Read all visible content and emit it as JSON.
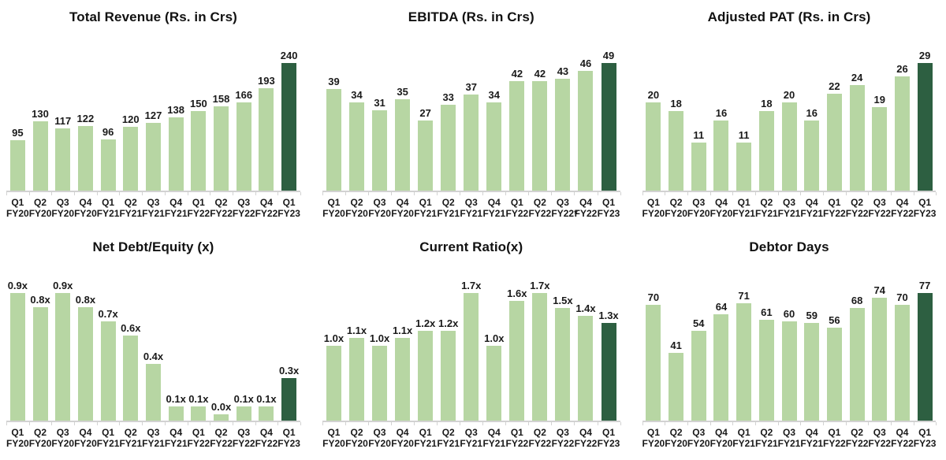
{
  "page": {
    "background": "#ffffff"
  },
  "colors": {
    "bar_light": "#b7d6a3",
    "bar_dark": "#2d5f41",
    "axis": "#d2d2d2",
    "text": "#1a1a1a"
  },
  "chart_data": [
    {
      "type": "bar",
      "title": "Total Revenue (Rs. in Crs)",
      "categories": [
        [
          "Q1",
          "FY20"
        ],
        [
          "Q2",
          "FY20"
        ],
        [
          "Q3",
          "FY20"
        ],
        [
          "Q4",
          "FY20"
        ],
        [
          "Q1",
          "FY21"
        ],
        [
          "Q2",
          "FY21"
        ],
        [
          "Q3",
          "FY21"
        ],
        [
          "Q4",
          "FY21"
        ],
        [
          "Q1",
          "FY22"
        ],
        [
          "Q2",
          "FY22"
        ],
        [
          "Q3",
          "FY22"
        ],
        [
          "Q4",
          "FY22"
        ],
        [
          "Q1",
          "FY23"
        ]
      ],
      "values": [
        95,
        130,
        117,
        122,
        96,
        120,
        127,
        138,
        150,
        158,
        166,
        193,
        240
      ],
      "labels": [
        "95",
        "130",
        "117",
        "122",
        "96",
        "120",
        "127",
        "138",
        "150",
        "158",
        "166",
        "193",
        "240"
      ],
      "ylim": [
        0,
        240
      ],
      "highlight_index": 12,
      "grid": false,
      "legend": "none"
    },
    {
      "type": "bar",
      "title": "EBITDA (Rs. in Crs)",
      "categories": [
        [
          "Q1",
          "FY20"
        ],
        [
          "Q2",
          "FY20"
        ],
        [
          "Q3",
          "FY20"
        ],
        [
          "Q4",
          "FY20"
        ],
        [
          "Q1",
          "FY21"
        ],
        [
          "Q2",
          "FY21"
        ],
        [
          "Q3",
          "FY21"
        ],
        [
          "Q4",
          "FY21"
        ],
        [
          "Q1",
          "FY22"
        ],
        [
          "Q2",
          "FY22"
        ],
        [
          "Q3",
          "FY22*"
        ],
        [
          "Q4",
          "FY22"
        ],
        [
          "Q1",
          "FY23"
        ]
      ],
      "values": [
        39,
        34,
        31,
        35,
        27,
        33,
        37,
        34,
        42,
        42,
        43,
        46,
        49
      ],
      "labels": [
        "39",
        "34",
        "31",
        "35",
        "27",
        "33",
        "37",
        "34",
        "42",
        "42",
        "43",
        "46",
        "49"
      ],
      "ylim": [
        0,
        49
      ],
      "highlight_index": 12,
      "grid": false,
      "legend": "none"
    },
    {
      "type": "bar",
      "title": "Adjusted PAT (Rs. in Crs)",
      "categories": [
        [
          "Q1",
          "FY20"
        ],
        [
          "Q2",
          "FY20"
        ],
        [
          "Q3",
          "FY20"
        ],
        [
          "Q4",
          "FY20"
        ],
        [
          "Q1",
          "FY21"
        ],
        [
          "Q2",
          "FY21"
        ],
        [
          "Q3",
          "FY21"
        ],
        [
          "Q4",
          "FY21"
        ],
        [
          "Q1",
          "FY22"
        ],
        [
          "Q2",
          "FY22"
        ],
        [
          "Q3",
          "FY22"
        ],
        [
          "Q4",
          "FY22"
        ],
        [
          "Q1",
          "FY23"
        ]
      ],
      "values": [
        20,
        18,
        11,
        16,
        11,
        18,
        20,
        16,
        22,
        24,
        19,
        26,
        29
      ],
      "labels": [
        "20",
        "18",
        "11",
        "16",
        "11",
        "18",
        "20",
        "16",
        "22",
        "24",
        "19",
        "26",
        "29"
      ],
      "ylim": [
        0,
        29
      ],
      "highlight_index": 12,
      "grid": false,
      "legend": "none"
    },
    {
      "type": "bar",
      "title": "Net Debt/Equity (x)",
      "categories": [
        [
          "Q1",
          "FY20"
        ],
        [
          "Q2",
          "FY20"
        ],
        [
          "Q3",
          "FY20"
        ],
        [
          "Q4",
          "FY20"
        ],
        [
          "Q1",
          "FY21"
        ],
        [
          "Q2",
          "FY21"
        ],
        [
          "Q3",
          "FY21"
        ],
        [
          "Q4",
          "FY21"
        ],
        [
          "Q1",
          "FY22"
        ],
        [
          "Q2",
          "FY22"
        ],
        [
          "Q3",
          "FY22"
        ],
        [
          "Q4",
          "FY22"
        ],
        [
          "Q1",
          "FY23"
        ]
      ],
      "values": [
        0.9,
        0.8,
        0.9,
        0.8,
        0.7,
        0.6,
        0.4,
        0.1,
        0.1,
        0.0,
        0.1,
        0.1,
        0.3
      ],
      "labels": [
        "0.9x",
        "0.8x",
        "0.9x",
        "0.8x",
        "0.7x",
        "0.6x",
        "0.4x",
        "0.1x",
        "0.1x",
        "0.0x",
        "0.1x",
        "0.1x",
        "0.3x"
      ],
      "ylim": [
        0,
        0.9
      ],
      "highlight_index": 12,
      "grid": false,
      "legend": "none"
    },
    {
      "type": "bar",
      "title": "Current Ratio(x)",
      "categories": [
        [
          "Q1",
          "FY20"
        ],
        [
          "Q2",
          "FY20"
        ],
        [
          "Q3",
          "FY20"
        ],
        [
          "Q4",
          "FY20"
        ],
        [
          "Q1",
          "FY21"
        ],
        [
          "Q2",
          "FY21"
        ],
        [
          "Q3",
          "FY21"
        ],
        [
          "Q4",
          "FY21"
        ],
        [
          "Q1",
          "FY22"
        ],
        [
          "Q2",
          "FY22"
        ],
        [
          "Q3",
          "FY22"
        ],
        [
          "Q4",
          "FY22"
        ],
        [
          "Q1",
          "FY23"
        ]
      ],
      "values": [
        1.0,
        1.1,
        1.0,
        1.1,
        1.2,
        1.2,
        1.7,
        1.0,
        1.6,
        1.7,
        1.5,
        1.4,
        1.3
      ],
      "labels": [
        "1.0x",
        "1.1x",
        "1.0x",
        "1.1x",
        "1.2x",
        "1.2x",
        "1.7x",
        "1.0x",
        "1.6x",
        "1.7x",
        "1.5x",
        "1.4x",
        "1.3x"
      ],
      "ylim": [
        0,
        1.7
      ],
      "highlight_index": 12,
      "grid": false,
      "legend": "none"
    },
    {
      "type": "bar",
      "title": "Debtor Days",
      "categories": [
        [
          "Q1",
          "FY20"
        ],
        [
          "Q2",
          "FY20"
        ],
        [
          "Q3",
          "FY20"
        ],
        [
          "Q4",
          "FY20"
        ],
        [
          "Q1",
          "FY21"
        ],
        [
          "Q2",
          "FY21"
        ],
        [
          "Q3",
          "FY21"
        ],
        [
          "Q4",
          "FY21"
        ],
        [
          "Q1",
          "FY22"
        ],
        [
          "Q2",
          "FY22"
        ],
        [
          "Q3",
          "FY22"
        ],
        [
          "Q4",
          "FY22"
        ],
        [
          "Q1",
          "FY23"
        ]
      ],
      "values": [
        70,
        41,
        54,
        64,
        71,
        61,
        60,
        59,
        56,
        68,
        74,
        70,
        77
      ],
      "labels": [
        "70",
        "41",
        "54",
        "64",
        "71",
        "61",
        "60",
        "59",
        "56",
        "68",
        "74",
        "70",
        "77"
      ],
      "ylim": [
        0,
        77
      ],
      "highlight_index": 12,
      "grid": false,
      "legend": "none"
    }
  ]
}
